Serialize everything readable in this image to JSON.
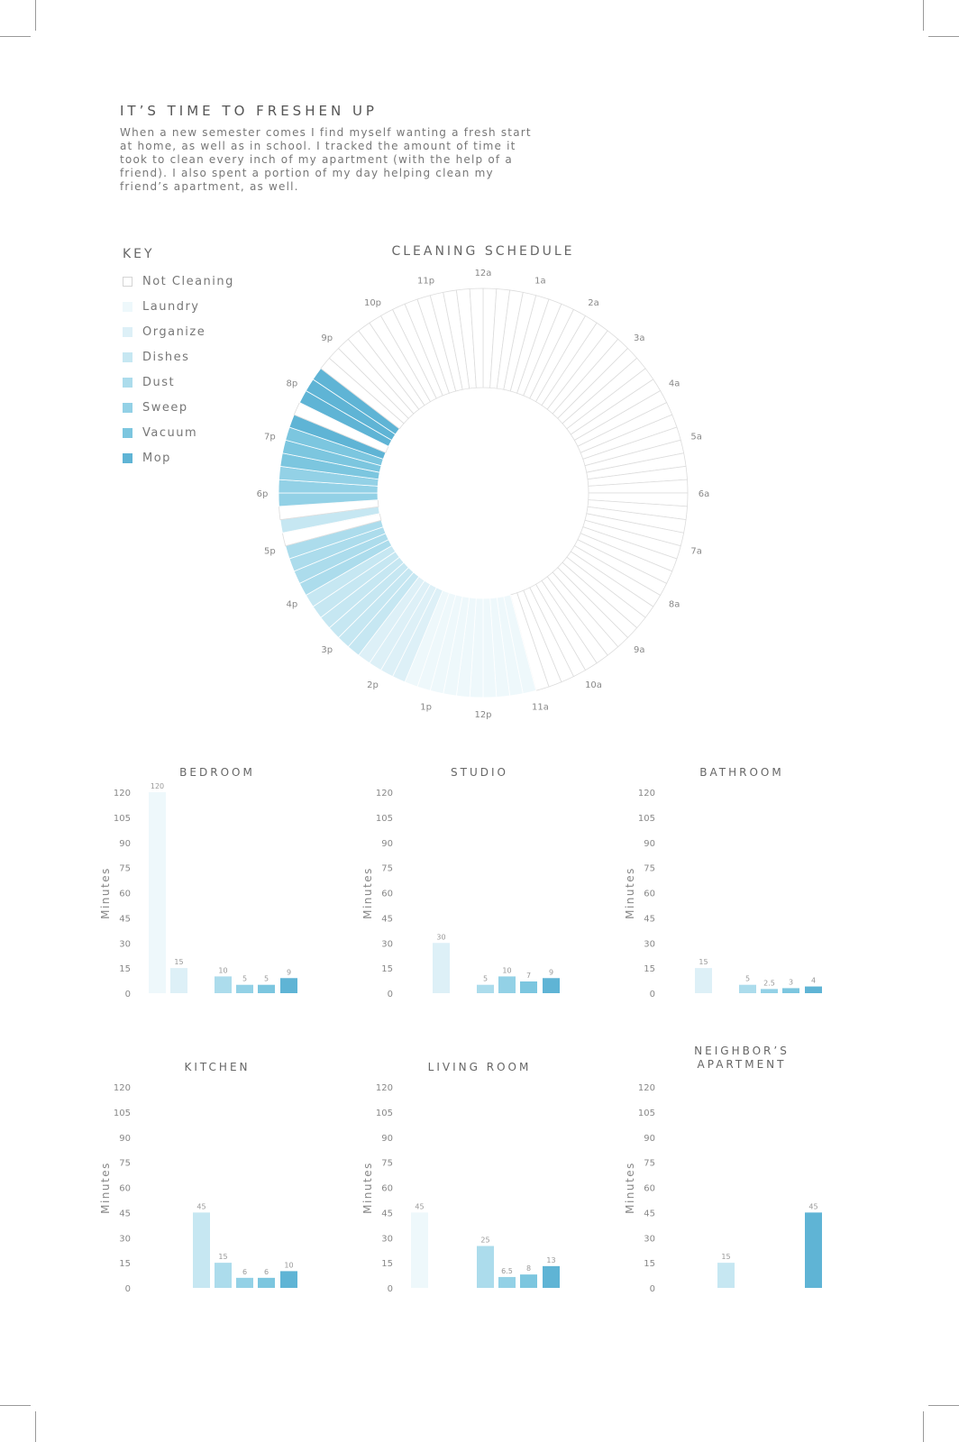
{
  "intro": {
    "title": "IT’S TIME TO FRESHEN UP",
    "body": "When a new semester comes I find myself wanting a fresh start at home, as well as in school. I tracked the amount of time it took to clean every inch of my apartment (with the help of a friend). I also spent a portion of my day helping clean my friend’s apartment, as well."
  },
  "key": {
    "title": "KEY",
    "items": [
      {
        "label": "Not Cleaning",
        "color": "#ffffff"
      },
      {
        "label": "Laundry",
        "color": "#eef8fb"
      },
      {
        "label": "Organize",
        "color": "#ddf0f7"
      },
      {
        "label": "Dishes",
        "color": "#c6e7f2"
      },
      {
        "label": "Dust",
        "color": "#acdcec"
      },
      {
        "label": "Sweep",
        "color": "#93d1e6"
      },
      {
        "label": "Vacuum",
        "color": "#7cc6df"
      },
      {
        "label": "Mop",
        "color": "#5fb4d5"
      }
    ]
  },
  "chart_data": [
    {
      "type": "pie",
      "title": "CLEANING SCHEDULE",
      "hour_labels": [
        "12a",
        "1a",
        "2a",
        "3a",
        "4a",
        "5a",
        "6a",
        "7a",
        "8a",
        "9a",
        "10a",
        "11a",
        "12p",
        "1p",
        "2p",
        "3p",
        "4p",
        "5p",
        "6p",
        "7p",
        "8p",
        "9p",
        "10p",
        "11p"
      ],
      "minutes_per_segment": 15,
      "segments_starting_12a": [
        "Not Cleaning",
        "Not Cleaning",
        "Not Cleaning",
        "Not Cleaning",
        "Not Cleaning",
        "Not Cleaning",
        "Not Cleaning",
        "Not Cleaning",
        "Not Cleaning",
        "Not Cleaning",
        "Not Cleaning",
        "Not Cleaning",
        "Not Cleaning",
        "Not Cleaning",
        "Not Cleaning",
        "Not Cleaning",
        "Not Cleaning",
        "Not Cleaning",
        "Not Cleaning",
        "Not Cleaning",
        "Not Cleaning",
        "Not Cleaning",
        "Not Cleaning",
        "Not Cleaning",
        "Not Cleaning",
        "Not Cleaning",
        "Not Cleaning",
        "Not Cleaning",
        "Not Cleaning",
        "Not Cleaning",
        "Not Cleaning",
        "Not Cleaning",
        "Not Cleaning",
        "Not Cleaning",
        "Not Cleaning",
        "Not Cleaning",
        "Not Cleaning",
        "Not Cleaning",
        "Not Cleaning",
        "Not Cleaning",
        "Not Cleaning",
        "Not Cleaning",
        "Not Cleaning",
        "Not Cleaning",
        "Laundry",
        "Laundry",
        "Laundry",
        "Laundry",
        "Laundry",
        "Laundry",
        "Laundry",
        "Laundry",
        "Laundry",
        "Laundry",
        "Organize",
        "Organize",
        "Organize",
        "Organize",
        "Dishes",
        "Dishes",
        "Dishes",
        "Dishes",
        "Dishes",
        "Dishes",
        "Dust",
        "Dust",
        "Dust",
        "Dust",
        "Not Cleaning",
        "Dishes",
        "Not Cleaning",
        "Sweep",
        "Sweep",
        "Sweep",
        "Vacuum",
        "Vacuum",
        "Vacuum",
        "Mop",
        "Not Cleaning",
        "Mop",
        "Mop",
        "Mop",
        "Not Cleaning",
        "Not Cleaning",
        "Not Cleaning",
        "Not Cleaning",
        "Not Cleaning",
        "Not Cleaning",
        "Not Cleaning",
        "Not Cleaning",
        "Not Cleaning",
        "Not Cleaning",
        "Not Cleaning",
        "Not Cleaning",
        "Not Cleaning",
        "Not Cleaning"
      ]
    },
    {
      "type": "bar",
      "title": "BEDROOM",
      "ylabel": "Minutes",
      "ylim": [
        0,
        120
      ],
      "yticks": [
        0,
        15,
        30,
        45,
        60,
        75,
        90,
        105,
        120
      ],
      "categories": [
        "Laundry",
        "Organize",
        "Dishes",
        "Dust",
        "Sweep",
        "Vacuum",
        "Mop"
      ],
      "values": [
        120,
        15,
        null,
        10,
        5,
        5,
        9
      ]
    },
    {
      "type": "bar",
      "title": "STUDIO",
      "ylabel": "Minutes",
      "ylim": [
        0,
        120
      ],
      "yticks": [
        0,
        15,
        30,
        45,
        60,
        75,
        90,
        105,
        120
      ],
      "categories": [
        "Laundry",
        "Organize",
        "Dishes",
        "Dust",
        "Sweep",
        "Vacuum",
        "Mop"
      ],
      "values": [
        null,
        30,
        null,
        5,
        10,
        7,
        9
      ]
    },
    {
      "type": "bar",
      "title": "BATHROOM",
      "ylabel": "Minutes",
      "ylim": [
        0,
        120
      ],
      "yticks": [
        0,
        15,
        30,
        45,
        60,
        75,
        90,
        105,
        120
      ],
      "categories": [
        "Laundry",
        "Organize",
        "Dishes",
        "Dust",
        "Sweep",
        "Vacuum",
        "Mop"
      ],
      "values": [
        null,
        15,
        null,
        5,
        2.5,
        3,
        4
      ]
    },
    {
      "type": "bar",
      "title": "KITCHEN",
      "ylabel": "Minutes",
      "ylim": [
        0,
        120
      ],
      "yticks": [
        0,
        15,
        30,
        45,
        60,
        75,
        90,
        105,
        120
      ],
      "categories": [
        "Laundry",
        "Organize",
        "Dishes",
        "Dust",
        "Sweep",
        "Vacuum",
        "Mop"
      ],
      "values": [
        null,
        null,
        45,
        15,
        6,
        6,
        10
      ]
    },
    {
      "type": "bar",
      "title": "LIVING ROOM",
      "ylabel": "Minutes",
      "ylim": [
        0,
        120
      ],
      "yticks": [
        0,
        15,
        30,
        45,
        60,
        75,
        90,
        105,
        120
      ],
      "categories": [
        "Laundry",
        "Organize",
        "Dishes",
        "Dust",
        "Sweep",
        "Vacuum",
        "Mop"
      ],
      "values": [
        45,
        null,
        null,
        25,
        6.5,
        8,
        13
      ]
    },
    {
      "type": "bar",
      "title": "NEIGHBOR’S APARTMENT",
      "ylabel": "Minutes",
      "ylim": [
        0,
        120
      ],
      "yticks": [
        0,
        15,
        30,
        45,
        60,
        75,
        90,
        105,
        120
      ],
      "categories": [
        "Laundry",
        "Organize",
        "Dishes",
        "Dust",
        "Sweep",
        "Vacuum",
        "Mop"
      ],
      "values": [
        null,
        null,
        15,
        null,
        null,
        null,
        45
      ]
    }
  ]
}
